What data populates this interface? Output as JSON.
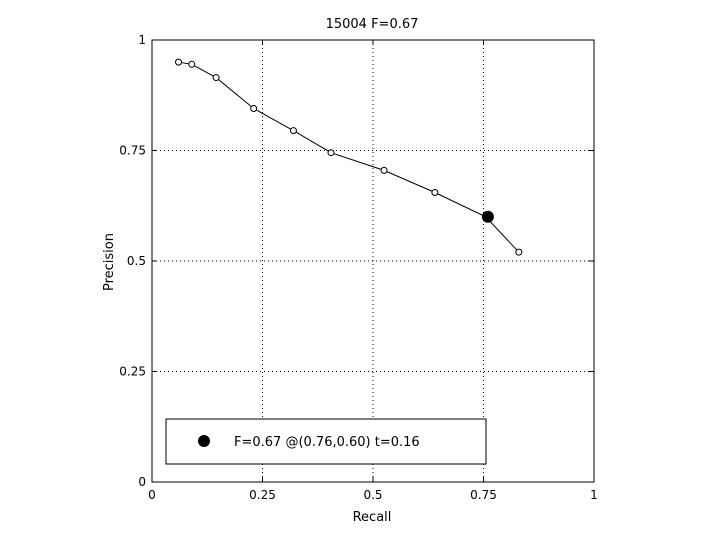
{
  "chart_data": {
    "type": "line",
    "title": "15004 F=0.67",
    "xlabel": "Recall",
    "ylabel": "Precision",
    "xlim": [
      0,
      1
    ],
    "ylim": [
      0,
      1
    ],
    "grid": true,
    "grid_style": "dotted",
    "x_ticks": [
      "0",
      "0.25",
      "0.5",
      "0.75",
      "1"
    ],
    "y_ticks": [
      "0",
      "0.25",
      "0.5",
      "0.75",
      "1"
    ],
    "series": [
      {
        "marker": "open-circle",
        "color": "#000000",
        "x": [
          0.06,
          0.09,
          0.145,
          0.23,
          0.32,
          0.405,
          0.525,
          0.64,
          0.755,
          0.83
        ],
        "y": [
          0.95,
          0.945,
          0.915,
          0.845,
          0.795,
          0.745,
          0.705,
          0.655,
          0.6,
          0.52
        ]
      }
    ],
    "highlight_point": {
      "x": 0.76,
      "y": 0.6,
      "marker": "filled-circle",
      "color": "#000000"
    },
    "legend": {
      "placement": "bottom-left",
      "label": "F=0.67 @(0.76,0.60) t=0.16"
    }
  }
}
